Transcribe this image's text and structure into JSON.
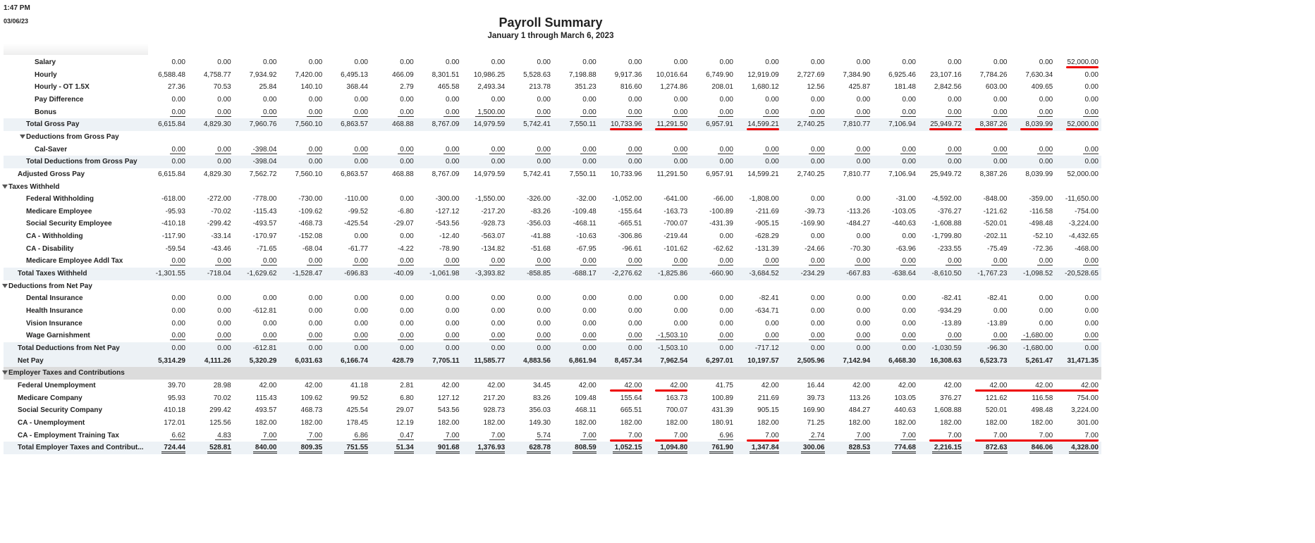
{
  "header": {
    "time": "1:47 PM",
    "date": "03/06/23",
    "title": "Payroll Summary",
    "subtitle": "January 1 through March 6, 2023"
  },
  "rows": [
    {
      "label": "Salary",
      "values": [
        "0.00",
        "0.00",
        "0.00",
        "0.00",
        "0.00",
        "0.00",
        "0.00",
        "0.00",
        "0.00",
        "0.00",
        "0.00",
        "0.00",
        "0.00",
        "0.00",
        "0.00",
        "0.00",
        "0.00",
        "0.00",
        "0.00",
        "0.00",
        "52,000.00"
      ]
    },
    {
      "label": "Hourly",
      "values": [
        "6,588.48",
        "4,758.77",
        "7,934.92",
        "7,420.00",
        "6,495.13",
        "466.09",
        "8,301.51",
        "10,986.25",
        "5,528.63",
        "7,198.88",
        "9,917.36",
        "10,016.64",
        "6,749.90",
        "12,919.09",
        "2,727.69",
        "7,384.90",
        "6,925.46",
        "23,107.16",
        "7,784.26",
        "7,630.34",
        "0.00"
      ]
    },
    {
      "label": "Hourly - OT 1.5X",
      "values": [
        "27.36",
        "70.53",
        "25.84",
        "140.10",
        "368.44",
        "2.79",
        "465.58",
        "2,493.34",
        "213.78",
        "351.23",
        "816.60",
        "1,274.86",
        "208.01",
        "1,680.12",
        "12.56",
        "425.87",
        "181.48",
        "2,842.56",
        "603.00",
        "409.65",
        "0.00"
      ]
    },
    {
      "label": "Pay Difference",
      "values": [
        "0.00",
        "0.00",
        "0.00",
        "0.00",
        "0.00",
        "0.00",
        "0.00",
        "0.00",
        "0.00",
        "0.00",
        "0.00",
        "0.00",
        "0.00",
        "0.00",
        "0.00",
        "0.00",
        "0.00",
        "0.00",
        "0.00",
        "0.00",
        "0.00"
      ]
    },
    {
      "label": "Bonus",
      "values": [
        "0.00",
        "0.00",
        "0.00",
        "0.00",
        "0.00",
        "0.00",
        "0.00",
        "1,500.00",
        "0.00",
        "0.00",
        "0.00",
        "0.00",
        "0.00",
        "0.00",
        "0.00",
        "0.00",
        "0.00",
        "0.00",
        "0.00",
        "0.00",
        "0.00"
      ]
    },
    {
      "label": "Total Gross Pay",
      "values": [
        "6,615.84",
        "4,829.30",
        "7,960.76",
        "7,560.10",
        "6,863.57",
        "468.88",
        "8,767.09",
        "14,979.59",
        "5,742.41",
        "7,550.11",
        "10,733.96",
        "11,291.50",
        "6,957.91",
        "14,599.21",
        "2,740.25",
        "7,810.77",
        "7,106.94",
        "25,949.72",
        "8,387.26",
        "8,039.99",
        "52,000.00"
      ]
    },
    {
      "label": "Deductions from Gross Pay"
    },
    {
      "label": "Cal-Saver",
      "values": [
        "0.00",
        "0.00",
        "-398.04",
        "0.00",
        "0.00",
        "0.00",
        "0.00",
        "0.00",
        "0.00",
        "0.00",
        "0.00",
        "0.00",
        "0.00",
        "0.00",
        "0.00",
        "0.00",
        "0.00",
        "0.00",
        "0.00",
        "0.00",
        "0.00"
      ]
    },
    {
      "label": "Total Deductions from Gross Pay",
      "values": [
        "0.00",
        "0.00",
        "-398.04",
        "0.00",
        "0.00",
        "0.00",
        "0.00",
        "0.00",
        "0.00",
        "0.00",
        "0.00",
        "0.00",
        "0.00",
        "0.00",
        "0.00",
        "0.00",
        "0.00",
        "0.00",
        "0.00",
        "0.00",
        "0.00"
      ]
    },
    {
      "label": "Adjusted Gross Pay",
      "values": [
        "6,615.84",
        "4,829.30",
        "7,562.72",
        "7,560.10",
        "6,863.57",
        "468.88",
        "8,767.09",
        "14,979.59",
        "5,742.41",
        "7,550.11",
        "10,733.96",
        "11,291.50",
        "6,957.91",
        "14,599.21",
        "2,740.25",
        "7,810.77",
        "7,106.94",
        "25,949.72",
        "8,387.26",
        "8,039.99",
        "52,000.00"
      ]
    },
    {
      "label": "Taxes Withheld"
    },
    {
      "label": "Federal Withholding",
      "values": [
        "-618.00",
        "-272.00",
        "-778.00",
        "-730.00",
        "-110.00",
        "0.00",
        "-300.00",
        "-1,550.00",
        "-326.00",
        "-32.00",
        "-1,052.00",
        "-641.00",
        "-66.00",
        "-1,808.00",
        "0.00",
        "0.00",
        "-31.00",
        "-4,592.00",
        "-848.00",
        "-359.00",
        "-11,650.00"
      ]
    },
    {
      "label": "Medicare Employee",
      "values": [
        "-95.93",
        "-70.02",
        "-115.43",
        "-109.62",
        "-99.52",
        "-6.80",
        "-127.12",
        "-217.20",
        "-83.26",
        "-109.48",
        "-155.64",
        "-163.73",
        "-100.89",
        "-211.69",
        "-39.73",
        "-113.26",
        "-103.05",
        "-376.27",
        "-121.62",
        "-116.58",
        "-754.00"
      ]
    },
    {
      "label": "Social Security Employee",
      "values": [
        "-410.18",
        "-299.42",
        "-493.57",
        "-468.73",
        "-425.54",
        "-29.07",
        "-543.56",
        "-928.73",
        "-356.03",
        "-468.11",
        "-665.51",
        "-700.07",
        "-431.39",
        "-905.15",
        "-169.90",
        "-484.27",
        "-440.63",
        "-1,608.88",
        "-520.01",
        "-498.48",
        "-3,224.00"
      ]
    },
    {
      "label": "CA - Withholding",
      "values": [
        "-117.90",
        "-33.14",
        "-170.97",
        "-152.08",
        "0.00",
        "0.00",
        "-12.40",
        "-563.07",
        "-41.88",
        "-10.63",
        "-306.86",
        "-219.44",
        "0.00",
        "-628.29",
        "0.00",
        "0.00",
        "0.00",
        "-1,799.80",
        "-202.11",
        "-52.10",
        "-4,432.65"
      ]
    },
    {
      "label": "CA - Disability",
      "values": [
        "-59.54",
        "-43.46",
        "-71.65",
        "-68.04",
        "-61.77",
        "-4.22",
        "-78.90",
        "-134.82",
        "-51.68",
        "-67.95",
        "-96.61",
        "-101.62",
        "-62.62",
        "-131.39",
        "-24.66",
        "-70.30",
        "-63.96",
        "-233.55",
        "-75.49",
        "-72.36",
        "-468.00"
      ]
    },
    {
      "label": "Medicare Employee Addl Tax",
      "values": [
        "0.00",
        "0.00",
        "0.00",
        "0.00",
        "0.00",
        "0.00",
        "0.00",
        "0.00",
        "0.00",
        "0.00",
        "0.00",
        "0.00",
        "0.00",
        "0.00",
        "0.00",
        "0.00",
        "0.00",
        "0.00",
        "0.00",
        "0.00",
        "0.00"
      ]
    },
    {
      "label": "Total Taxes Withheld",
      "values": [
        "-1,301.55",
        "-718.04",
        "-1,629.62",
        "-1,528.47",
        "-696.83",
        "-40.09",
        "-1,061.98",
        "-3,393.82",
        "-858.85",
        "-688.17",
        "-2,276.62",
        "-1,825.86",
        "-660.90",
        "-3,684.52",
        "-234.29",
        "-667.83",
        "-638.64",
        "-8,610.50",
        "-1,767.23",
        "-1,098.52",
        "-20,528.65"
      ]
    },
    {
      "label": "Deductions from Net Pay"
    },
    {
      "label": "Dental Insurance",
      "values": [
        "0.00",
        "0.00",
        "0.00",
        "0.00",
        "0.00",
        "0.00",
        "0.00",
        "0.00",
        "0.00",
        "0.00",
        "0.00",
        "0.00",
        "0.00",
        "-82.41",
        "0.00",
        "0.00",
        "0.00",
        "-82.41",
        "-82.41",
        "0.00",
        "0.00"
      ]
    },
    {
      "label": "Health Insurance",
      "values": [
        "0.00",
        "0.00",
        "-612.81",
        "0.00",
        "0.00",
        "0.00",
        "0.00",
        "0.00",
        "0.00",
        "0.00",
        "0.00",
        "0.00",
        "0.00",
        "-634.71",
        "0.00",
        "0.00",
        "0.00",
        "-934.29",
        "0.00",
        "0.00",
        "0.00"
      ]
    },
    {
      "label": "Vision Insurance",
      "values": [
        "0.00",
        "0.00",
        "0.00",
        "0.00",
        "0.00",
        "0.00",
        "0.00",
        "0.00",
        "0.00",
        "0.00",
        "0.00",
        "0.00",
        "0.00",
        "0.00",
        "0.00",
        "0.00",
        "0.00",
        "-13.89",
        "-13.89",
        "0.00",
        "0.00"
      ]
    },
    {
      "label": "Wage Garnishment",
      "values": [
        "0.00",
        "0.00",
        "0.00",
        "0.00",
        "0.00",
        "0.00",
        "0.00",
        "0.00",
        "0.00",
        "0.00",
        "0.00",
        "-1,503.10",
        "0.00",
        "0.00",
        "0.00",
        "0.00",
        "0.00",
        "0.00",
        "0.00",
        "-1,680.00",
        "0.00"
      ]
    },
    {
      "label": "Total Deductions from Net Pay",
      "values": [
        "0.00",
        "0.00",
        "-612.81",
        "0.00",
        "0.00",
        "0.00",
        "0.00",
        "0.00",
        "0.00",
        "0.00",
        "0.00",
        "-1,503.10",
        "0.00",
        "-717.12",
        "0.00",
        "0.00",
        "0.00",
        "-1,030.59",
        "-96.30",
        "-1,680.00",
        "0.00"
      ]
    },
    {
      "label": "Net Pay",
      "values": [
        "5,314.29",
        "4,111.26",
        "5,320.29",
        "6,031.63",
        "6,166.74",
        "428.79",
        "7,705.11",
        "11,585.77",
        "4,883.56",
        "6,861.94",
        "8,457.34",
        "7,962.54",
        "6,297.01",
        "10,197.57",
        "2,505.96",
        "7,142.94",
        "6,468.30",
        "16,308.63",
        "6,523.73",
        "5,261.47",
        "31,471.35"
      ]
    },
    {
      "label": "Employer Taxes and Contributions"
    },
    {
      "label": "Federal Unemployment",
      "values": [
        "39.70",
        "28.98",
        "42.00",
        "42.00",
        "41.18",
        "2.81",
        "42.00",
        "42.00",
        "34.45",
        "42.00",
        "42.00",
        "42.00",
        "41.75",
        "42.00",
        "16.44",
        "42.00",
        "42.00",
        "42.00",
        "42.00",
        "42.00",
        "42.00"
      ]
    },
    {
      "label": "Medicare Company",
      "values": [
        "95.93",
        "70.02",
        "115.43",
        "109.62",
        "99.52",
        "6.80",
        "127.12",
        "217.20",
        "83.26",
        "109.48",
        "155.64",
        "163.73",
        "100.89",
        "211.69",
        "39.73",
        "113.26",
        "103.05",
        "376.27",
        "121.62",
        "116.58",
        "754.00"
      ]
    },
    {
      "label": "Social Security Company",
      "values": [
        "410.18",
        "299.42",
        "493.57",
        "468.73",
        "425.54",
        "29.07",
        "543.56",
        "928.73",
        "356.03",
        "468.11",
        "665.51",
        "700.07",
        "431.39",
        "905.15",
        "169.90",
        "484.27",
        "440.63",
        "1,608.88",
        "520.01",
        "498.48",
        "3,224.00"
      ]
    },
    {
      "label": "CA - Unemployment",
      "values": [
        "172.01",
        "125.56",
        "182.00",
        "182.00",
        "178.45",
        "12.19",
        "182.00",
        "182.00",
        "149.30",
        "182.00",
        "182.00",
        "182.00",
        "180.91",
        "182.00",
        "71.25",
        "182.00",
        "182.00",
        "182.00",
        "182.00",
        "182.00",
        "301.00"
      ]
    },
    {
      "label": "CA - Employment Training Tax",
      "values": [
        "6.62",
        "4.83",
        "7.00",
        "7.00",
        "6.86",
        "0.47",
        "7.00",
        "7.00",
        "5.74",
        "7.00",
        "7.00",
        "7.00",
        "6.96",
        "7.00",
        "2.74",
        "7.00",
        "7.00",
        "7.00",
        "7.00",
        "7.00",
        "7.00"
      ]
    },
    {
      "label": "Total Employer Taxes and Contribut...",
      "values": [
        "724.44",
        "528.81",
        "840.00",
        "809.35",
        "751.55",
        "51.34",
        "901.68",
        "1,376.93",
        "628.78",
        "808.59",
        "1,052.15",
        "1,094.80",
        "761.90",
        "1,347.84",
        "300.06",
        "828.53",
        "774.68",
        "2,216.15",
        "872.63",
        "846.06",
        "4,328.00"
      ]
    }
  ]
}
